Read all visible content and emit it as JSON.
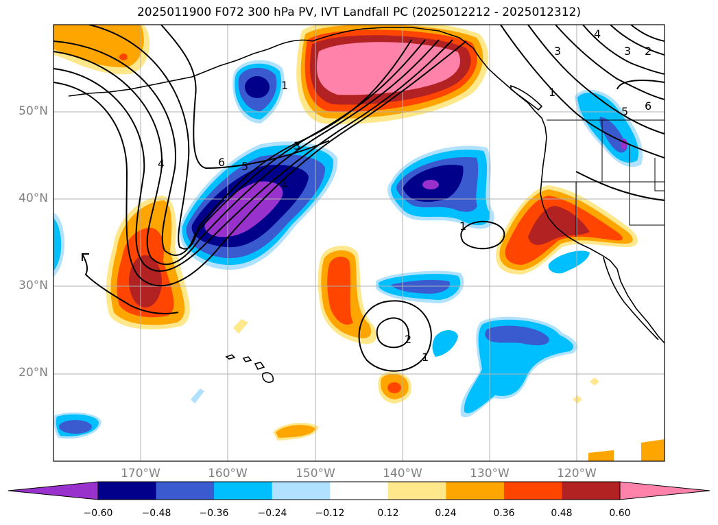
{
  "title": "2025011900 F072 300 hPa PV, IVT Landfall PC (2025012212 - 2025012312)",
  "lat_labels": [
    "50°N",
    "40°N",
    "30°N",
    "20°N"
  ],
  "lon_labels": [
    "170°W",
    "160°W",
    "150°W",
    "140°W",
    "130°W",
    "120°W"
  ],
  "contour_labels": [
    "1",
    "2",
    "3",
    "4",
    "5",
    "6"
  ],
  "colorbar": {
    "ticks": [
      "−0.60",
      "−0.48",
      "−0.36",
      "−0.24",
      "−0.12",
      "0.12",
      "0.24",
      "0.36",
      "0.48",
      "0.60"
    ],
    "colors": [
      "#9932cc",
      "#00008b",
      "#3a5bd0",
      "#00bfff",
      "#b0e2ff",
      "#ffffff",
      "#ffe88c",
      "#ffa500",
      "#ff4500",
      "#b22222",
      "#ff82ab",
      "#ff82ab"
    ]
  },
  "map": {
    "projection": "equirectangular",
    "extent_lon": [
      -180,
      -110
    ],
    "extent_lat": [
      10,
      60
    ],
    "features": [
      "coastlines",
      "US state borders",
      "gridlines"
    ],
    "shading_field": "IVT Landfall PC",
    "contour_field": "300 hPa PV"
  }
}
